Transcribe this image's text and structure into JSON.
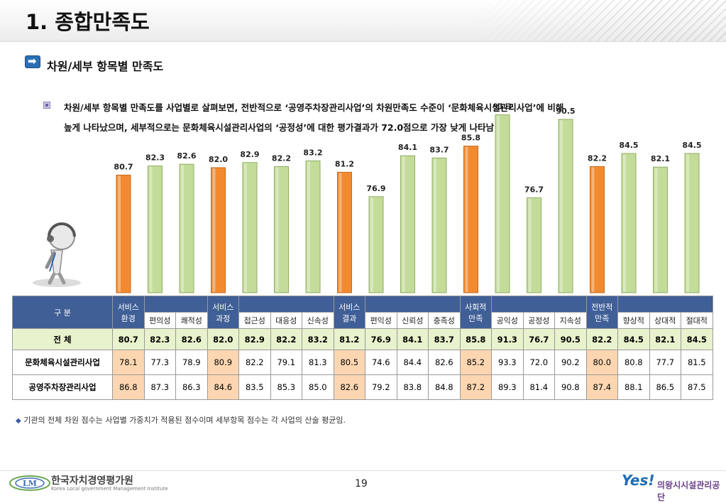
{
  "page": {
    "title": "1. 종합만족도",
    "section_title": "차원/세부 항목별 만족도",
    "description_line1": "차원/세부 항목별 만족도를 사업별로 살펴보면, 전반적으로 ‘공영주차장관리사업’의 차원만족도 수준이 ‘문화체육시설관리사업’에 비해",
    "description_line2": "높게 나타났으며, 세부적으로는 문화체육시설관리사업의 ‘공정성’에 대한 평가결과가 72.0점으로 가장 낮게 나타남",
    "footnote": "기관의 전체 차원 점수는 사업별 가중치가 적용된 점수이며 세부항목 점수는 각 사업의 산술 평균임.",
    "page_number": "19",
    "logo_left_name": "한국자치경영평가원",
    "logo_left_sub": "Korea Local government Management Institute",
    "logo_right_mark": "Yes!",
    "logo_right_name": "의왕시시설관리공단"
  },
  "colors": {
    "dimension_bar": "#f28a30",
    "item_bar": "#c4dc9a",
    "header_blue": "#3f5f96",
    "total_row": "#e8f2cc",
    "highlight_cell": "#fcd6b1"
  },
  "chart_data": {
    "type": "bar",
    "categories": [
      "서비스 환경",
      "편의성",
      "쾌적성",
      "서비스 과정",
      "접근성",
      "대응성",
      "신속성",
      "서비스 결과",
      "편익성",
      "신뢰성",
      "충족성",
      "사회적 만족",
      "공익성",
      "공정성",
      "지속성",
      "전반적 만족",
      "향상적",
      "상대적",
      "절대적"
    ],
    "values": [
      80.7,
      82.3,
      82.6,
      82.0,
      82.9,
      82.2,
      83.2,
      81.2,
      76.9,
      84.1,
      83.7,
      85.8,
      91.3,
      76.7,
      90.5,
      82.2,
      84.5,
      82.1,
      84.5
    ],
    "highlight": [
      true,
      false,
      false,
      true,
      false,
      false,
      false,
      true,
      false,
      false,
      false,
      true,
      false,
      false,
      false,
      true,
      false,
      false,
      false
    ],
    "ylim": [
      0,
      100
    ]
  },
  "table": {
    "header_label": "구 분",
    "groups": [
      {
        "label_top": "서비스",
        "label_bottom": "환경",
        "subs": [
          "편의성",
          "쾌적성"
        ]
      },
      {
        "label_top": "서비스",
        "label_bottom": "과정",
        "subs": [
          "접근성",
          "대응성",
          "신속성"
        ]
      },
      {
        "label_top": "서비스",
        "label_bottom": "결과",
        "subs": [
          "편익성",
          "신뢰성",
          "충족성"
        ]
      },
      {
        "label_top": "사회적",
        "label_bottom": "만족",
        "subs": [
          "공익성",
          "공정성",
          "지속성"
        ]
      },
      {
        "label_top": "전반적",
        "label_bottom": "만족",
        "subs": [
          "향상적",
          "상대적",
          "절대적"
        ]
      }
    ],
    "rows": [
      {
        "label": "전 체",
        "values": [
          "80.7",
          "82.3",
          "82.6",
          "82.0",
          "82.9",
          "82.2",
          "83.2",
          "81.2",
          "76.9",
          "84.1",
          "83.7",
          "85.8",
          "91.3",
          "76.7",
          "90.5",
          "82.2",
          "84.5",
          "82.1",
          "84.5"
        ]
      },
      {
        "label": "문화체육시설관리사업",
        "values": [
          "78.1",
          "77.3",
          "78.9",
          "80.9",
          "82.2",
          "79.1",
          "81.3",
          "80.5",
          "74.6",
          "84.4",
          "82.6",
          "85.2",
          "93.3",
          "72.0",
          "90.2",
          "80.0",
          "80.8",
          "77.7",
          "81.5"
        ]
      },
      {
        "label": "공영주차장관리사업",
        "values": [
          "86.8",
          "87.3",
          "86.3",
          "84.6",
          "83.5",
          "85.3",
          "85.0",
          "82.6",
          "79.2",
          "83.8",
          "84.8",
          "87.2",
          "89.3",
          "81.4",
          "90.8",
          "87.4",
          "88.1",
          "86.5",
          "87.5"
        ]
      }
    ]
  }
}
